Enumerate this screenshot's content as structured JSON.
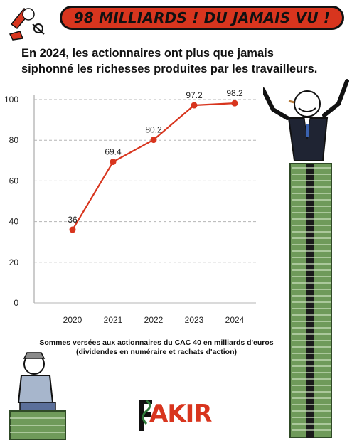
{
  "header": {
    "banner_text": "98 MILLIARDS ! DU JAMAIS VU !"
  },
  "subtitle": "En 2024, les actionnaires ont plus que jamais siphonné les richesses produites par les travailleurs.",
  "caption": {
    "line1": "Sommes versées aux actionnaires du CAC 40 en milliards d'euros",
    "line2": "(dividendes en numéraire et rachats d'action)"
  },
  "logo": {
    "text": "AKIR",
    "full": "FAKIR"
  },
  "colors": {
    "accent": "#d8351e",
    "line": "#d8351e",
    "money": "#6f9a5a"
  },
  "chart_data": {
    "type": "line",
    "x": [
      "2020",
      "2021",
      "2022",
      "2023",
      "2024"
    ],
    "series": [
      {
        "values": [
          36,
          69.4,
          80.2,
          97.2,
          98.2
        ]
      }
    ],
    "data_labels": [
      "36",
      "69.4",
      "80.2",
      "97.2",
      "98.2"
    ],
    "yticks": [
      "0",
      "20",
      "40",
      "60",
      "80",
      "100"
    ],
    "ylim": [
      0,
      100
    ],
    "grid": true,
    "title": "",
    "xlabel": "",
    "ylabel": ""
  }
}
